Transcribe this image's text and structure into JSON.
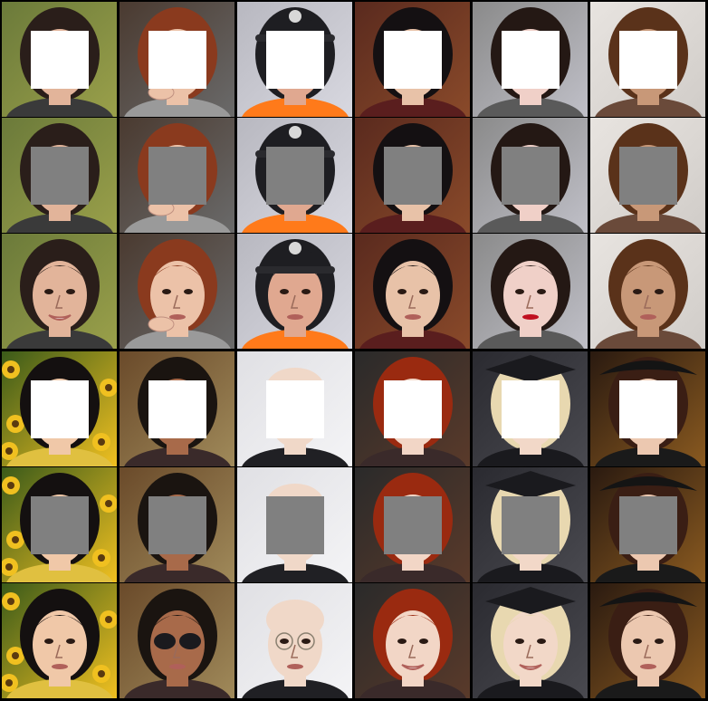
{
  "mask_colors": {
    "masked_input": "#ffffff",
    "mean_filled": "#808080"
  },
  "row_types": [
    "masked_input",
    "mean_filled",
    "reconstruction",
    "masked_input",
    "mean_filled",
    "reconstruction"
  ],
  "faces": [
    {
      "id": "girl-dark-hair-outdoor",
      "bg": "#6b7a3a",
      "bg2": "#9aa04a",
      "skin": "#e2b49a",
      "hair": "#2a1e1a",
      "cloth": "#3a3a3a",
      "features": [
        "smile"
      ]
    },
    {
      "id": "girl-auburn-hair",
      "bg": "#4a3a30",
      "bg2": "#6a6a6a",
      "skin": "#ecc2a8",
      "hair": "#8a3a1e",
      "cloth": "#9a9a9a",
      "features": [
        "hand-on-chin"
      ]
    },
    {
      "id": "police-officer",
      "bg": "#b8b8c0",
      "bg2": "#d8d8e0",
      "skin": "#e0a890",
      "hair": "#1e1e22",
      "cloth": "#ff7a1a",
      "features": [
        "helmet",
        "badge"
      ]
    },
    {
      "id": "asian-woman-indoor",
      "bg": "#5a2a1e",
      "bg2": "#8a4a2a",
      "skin": "#e8c2a8",
      "hair": "#141012",
      "cloth": "#5a1e1e",
      "features": []
    },
    {
      "id": "woman-red-lips",
      "bg": "#8a8a8a",
      "bg2": "#c0c0c8",
      "skin": "#f0d0c8",
      "hair": "#241814",
      "cloth": "#5a5a5a",
      "features": [
        "red-lips"
      ]
    },
    {
      "id": "man-curly-hair",
      "bg": "#e8e4e0",
      "bg2": "#d0ccc8",
      "skin": "#c89878",
      "hair": "#5a321a",
      "cloth": "#6a4a3a",
      "features": []
    },
    {
      "id": "child-sunflowers",
      "bg": "#3a5a1a",
      "bg2": "#f0c020",
      "skin": "#f0c8a8",
      "hair": "#141010",
      "cloth": "#e0c040",
      "features": [
        "flowers"
      ]
    },
    {
      "id": "man-sunglasses",
      "bg": "#6a4a2a",
      "bg2": "#a08a5a",
      "skin": "#a86a4a",
      "hair": "#1a1410",
      "cloth": "#3a2a2a",
      "features": [
        "sunglasses"
      ]
    },
    {
      "id": "elderly-man-glasses",
      "bg": "#e0e0e4",
      "bg2": "#f4f4f6",
      "skin": "#f0d8c8",
      "hair": "#e8e0d8",
      "cloth": "#202024",
      "features": [
        "glasses",
        "bald"
      ]
    },
    {
      "id": "redhead-woman",
      "bg": "#2a2a2a",
      "bg2": "#5a3a2a",
      "skin": "#f2d6c6",
      "hair": "#9a2a10",
      "cloth": "#3a2a2a",
      "features": [
        "smile"
      ]
    },
    {
      "id": "blonde-graduate",
      "bg": "#2a2a30",
      "bg2": "#4a4a50",
      "skin": "#f2d8c8",
      "hair": "#e8d8b0",
      "cloth": "#1a1a1e",
      "features": [
        "cap",
        "smile"
      ]
    },
    {
      "id": "woman-ornate-hat",
      "bg": "#2a1a10",
      "bg2": "#8a5a20",
      "skin": "#ecc8b0",
      "hair": "#3a1e14",
      "cloth": "#1a1a1a",
      "features": [
        "hat"
      ]
    }
  ]
}
